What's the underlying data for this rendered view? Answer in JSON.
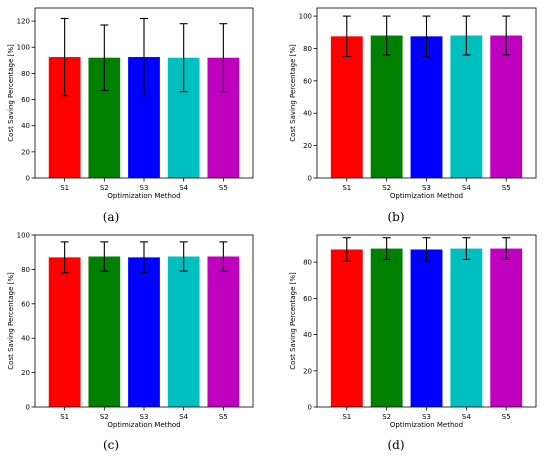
{
  "chart_data": [
    {
      "type": "bar",
      "caption": "(a)",
      "xlabel": "Optimization Method",
      "ylabel": "Cost Saving Percentage [%]",
      "categories": [
        "S1",
        "S2",
        "S3",
        "S4",
        "S5"
      ],
      "values": [
        92.5,
        92.0,
        92.5,
        92.0,
        92.0
      ],
      "errors": [
        29.5,
        25.0,
        29.5,
        26.0,
        26.0
      ],
      "colors": [
        "#ff0000",
        "#008000",
        "#0000ff",
        "#00bfbf",
        "#bf00bf"
      ],
      "ylim": [
        0,
        130
      ],
      "yticks": [
        0,
        20,
        40,
        60,
        80,
        100,
        120
      ],
      "grid": false
    },
    {
      "type": "bar",
      "caption": "(b)",
      "xlabel": "Optimization Method",
      "ylabel": "Cost Saving Percentage [%]",
      "categories": [
        "S1",
        "S2",
        "S3",
        "S4",
        "S5"
      ],
      "values": [
        87.5,
        88.0,
        87.5,
        88.0,
        88.0
      ],
      "errors": [
        12.5,
        12.0,
        12.5,
        12.0,
        12.0
      ],
      "colors": [
        "#ff0000",
        "#008000",
        "#0000ff",
        "#00bfbf",
        "#bf00bf"
      ],
      "ylim": [
        0,
        105
      ],
      "yticks": [
        0,
        20,
        40,
        60,
        80,
        100
      ],
      "grid": false
    },
    {
      "type": "bar",
      "caption": "(c)",
      "xlabel": "Optimization Method",
      "ylabel": "Cost Saving Percentage [%]",
      "categories": [
        "S1",
        "S2",
        "S3",
        "S4",
        "S5"
      ],
      "values": [
        87.0,
        87.5,
        87.0,
        87.5,
        87.5
      ],
      "errors": [
        9.0,
        8.5,
        9.0,
        8.5,
        8.5
      ],
      "colors": [
        "#ff0000",
        "#008000",
        "#0000ff",
        "#00bfbf",
        "#bf00bf"
      ],
      "ylim": [
        0,
        100
      ],
      "yticks": [
        0,
        20,
        40,
        60,
        80,
        100
      ],
      "grid": false
    },
    {
      "type": "bar",
      "caption": "(d)",
      "xlabel": "Optimization Method",
      "ylabel": "Cost Saving Percentage [%]",
      "categories": [
        "S1",
        "S2",
        "S3",
        "S4",
        "S5"
      ],
      "values": [
        87.0,
        87.5,
        87.0,
        87.5,
        87.5
      ],
      "errors": [
        6.5,
        6.0,
        6.5,
        6.0,
        6.0
      ],
      "colors": [
        "#ff0000",
        "#008000",
        "#0000ff",
        "#00bfbf",
        "#bf00bf"
      ],
      "ylim": [
        0,
        95
      ],
      "yticks": [
        0,
        20,
        40,
        60,
        80
      ],
      "grid": false
    }
  ]
}
